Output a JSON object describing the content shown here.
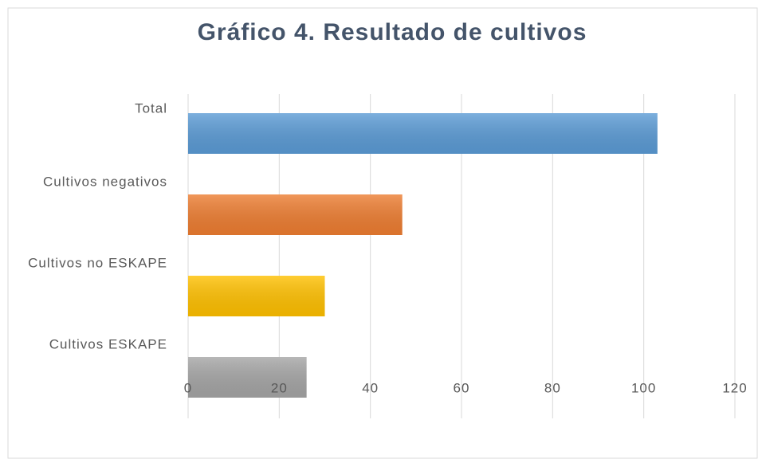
{
  "chart_data": {
    "type": "bar",
    "orientation": "horizontal",
    "title": "Gráfico 4. Resultado de cultivos",
    "categories": [
      "Total",
      "Cultivos negativos",
      "Cultivos no ESKAPE",
      "Cultivos ESKAPE"
    ],
    "values": [
      103,
      47,
      30,
      26
    ],
    "colors": [
      "#5b9bd5",
      "#ed7d31",
      "#ffc000",
      "#a5a5a5"
    ],
    "xlim": [
      0,
      120
    ],
    "xticks": [
      0,
      20,
      40,
      60,
      80,
      100,
      120
    ],
    "grid": true
  }
}
